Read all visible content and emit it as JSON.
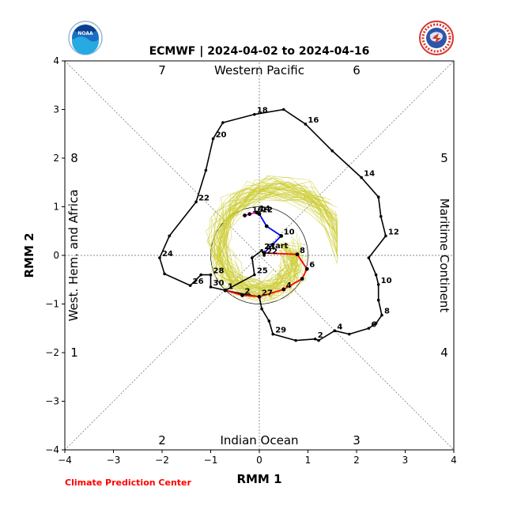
{
  "header": {
    "title": "ECMWF | 2024-04-02 to 2024-04-16",
    "left_logo_icon": "noaa-logo-icon",
    "right_logo_icon": "national-weather-service-logo-icon"
  },
  "footer": {
    "credit": "Climate Prediction Center"
  },
  "colors": {
    "observed": "#000000",
    "forecast_early": "#ff0000",
    "forecast_mid": "#0000ff",
    "forecast_late": "#ff00ff",
    "ensemble": "#cccc33",
    "credit": "#ff0000"
  },
  "chart_data": {
    "type": "line",
    "title": "ECMWF | 2024-04-02 to 2024-04-16",
    "xlabel": "RMM 1",
    "ylabel": "RMM 2",
    "xlim": [
      -4,
      4
    ],
    "ylim": [
      -4,
      4
    ],
    "xticks": [
      "−4",
      "−3",
      "−2",
      "−1",
      "0",
      "1",
      "2",
      "3",
      "4"
    ],
    "yticks": [
      "−4",
      "−3",
      "−2",
      "−1",
      "0",
      "1",
      "2",
      "3",
      "4"
    ],
    "grid": "dotted diagonals and axes through origin, unit circle",
    "phase_labels": [
      "1",
      "2",
      "3",
      "4",
      "5",
      "6",
      "7",
      "8"
    ],
    "region_labels": {
      "top": "Western Pacific",
      "bottom": "Indian Ocean",
      "left": "West. Hem. and Africa",
      "right": "Maritime Continent"
    },
    "start_label": "start",
    "series": [
      {
        "role": "observed",
        "points": [
          {
            "x": -0.7,
            "y": -0.72,
            "label": "1"
          },
          {
            "x": -0.2,
            "y": -0.82,
            "label": ""
          },
          {
            "x": 0.0,
            "y": -0.85,
            "label": ""
          },
          {
            "x": 0.05,
            "y": -1.1,
            "label": ""
          },
          {
            "x": 0.2,
            "y": -1.35,
            "label": ""
          },
          {
            "x": 0.28,
            "y": -1.62,
            "label": "29"
          },
          {
            "x": 0.75,
            "y": -1.75,
            "label": ""
          },
          {
            "x": 1.15,
            "y": -1.72,
            "label": "2"
          },
          {
            "x": 1.22,
            "y": -1.75,
            "label": ""
          },
          {
            "x": 1.55,
            "y": -1.55,
            "label": "4"
          },
          {
            "x": 1.85,
            "y": -1.62,
            "label": ""
          },
          {
            "x": 2.25,
            "y": -1.5,
            "label": "6"
          },
          {
            "x": 2.4,
            "y": -1.4,
            "label": ""
          },
          {
            "x": 2.52,
            "y": -1.23,
            "label": "8"
          },
          {
            "x": 2.45,
            "y": -0.92,
            "label": ""
          },
          {
            "x": 2.45,
            "y": -0.6,
            "label": "10"
          },
          {
            "x": 2.4,
            "y": -0.4,
            "label": ""
          },
          {
            "x": 2.25,
            "y": -0.05,
            "label": ""
          },
          {
            "x": 2.6,
            "y": 0.4,
            "label": "12"
          },
          {
            "x": 2.5,
            "y": 0.8,
            "label": ""
          },
          {
            "x": 2.45,
            "y": 1.2,
            "label": ""
          },
          {
            "x": 2.1,
            "y": 1.6,
            "label": "14"
          },
          {
            "x": 1.5,
            "y": 2.15,
            "label": ""
          },
          {
            "x": 0.95,
            "y": 2.7,
            "label": "16"
          },
          {
            "x": 0.5,
            "y": 3.0,
            "label": ""
          },
          {
            "x": -0.1,
            "y": 2.9,
            "label": "18"
          },
          {
            "x": -0.75,
            "y": 2.73,
            "label": ""
          },
          {
            "x": -0.95,
            "y": 2.4,
            "label": "20"
          },
          {
            "x": -1.1,
            "y": 1.75,
            "label": ""
          },
          {
            "x": -1.3,
            "y": 1.1,
            "label": "22"
          },
          {
            "x": -1.85,
            "y": 0.4,
            "label": ""
          },
          {
            "x": -2.05,
            "y": -0.05,
            "label": "24"
          },
          {
            "x": -1.95,
            "y": -0.38,
            "label": ""
          },
          {
            "x": -1.42,
            "y": -0.62,
            "label": "26"
          },
          {
            "x": -1.2,
            "y": -0.4,
            "label": ""
          },
          {
            "x": -1.0,
            "y": -0.4,
            "label": "28"
          },
          {
            "x": -1.0,
            "y": -0.65,
            "label": "30"
          },
          {
            "x": -0.7,
            "y": -0.72,
            "label": ""
          },
          {
            "x": -0.1,
            "y": -0.4,
            "label": "25"
          },
          {
            "x": -0.15,
            "y": -0.05,
            "label": ""
          },
          {
            "x": 0.05,
            "y": 0.1,
            "label": "23"
          },
          {
            "x": 0.1,
            "y": 0.0,
            "label": "22"
          }
        ]
      },
      {
        "role": "forecast",
        "points": [
          {
            "x": 0.1,
            "y": 0.05,
            "label": ""
          },
          {
            "x": 0.78,
            "y": 0.02,
            "label": "8"
          },
          {
            "x": 0.98,
            "y": -0.28,
            "label": "6"
          },
          {
            "x": 0.88,
            "y": -0.48,
            "label": ""
          },
          {
            "x": 0.5,
            "y": -0.7,
            "label": "4"
          },
          {
            "x": 0.0,
            "y": -0.85,
            "label": "27"
          },
          {
            "x": -0.35,
            "y": -0.82,
            "label": "2"
          },
          {
            "x": -0.7,
            "y": -0.72,
            "label": "1"
          },
          {
            "x": 0.45,
            "y": 0.4,
            "label": "10"
          },
          {
            "x": 0.15,
            "y": 0.6,
            "label": ""
          },
          {
            "x": 0.0,
            "y": 0.85,
            "label": "12"
          },
          {
            "x": -0.05,
            "y": 0.88,
            "label": "14"
          },
          {
            "x": -0.2,
            "y": 0.85,
            "label": "16"
          },
          {
            "x": -0.3,
            "y": 0.82,
            "label": ""
          }
        ]
      }
    ]
  }
}
